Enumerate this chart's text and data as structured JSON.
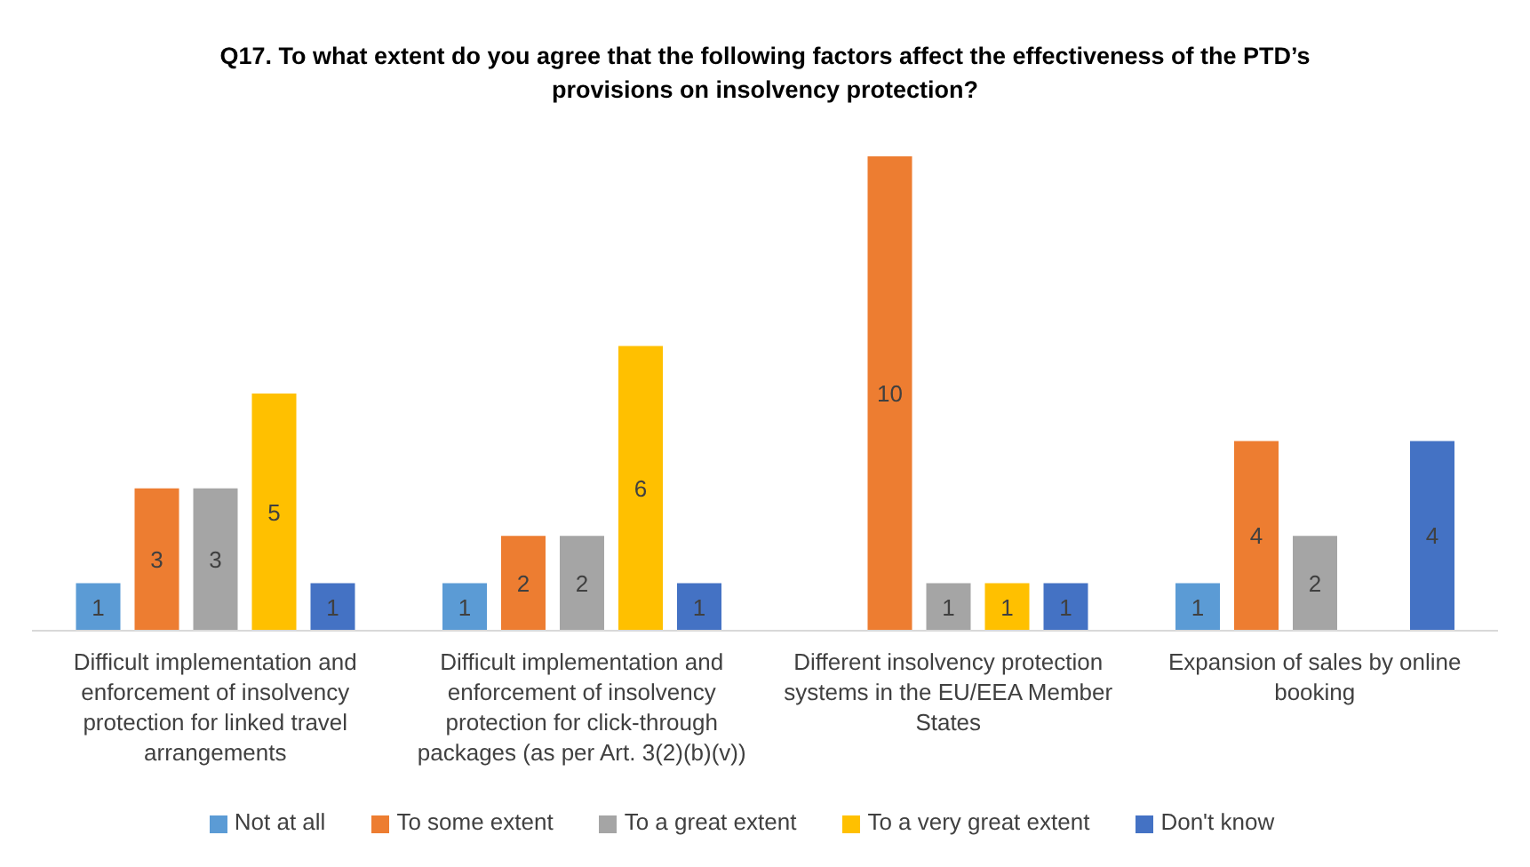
{
  "chart_data": {
    "type": "bar",
    "title": "Q17. To what extent do you agree that the following factors affect the effectiveness of the PTD’s provisions on insolvency protection?",
    "categories": [
      "Difficult implementation and enforcement of insolvency protection for linked travel arrangements",
      "Difficult implementation and enforcement of insolvency protection for click-through packages (as per Art. 3(2)(b)(v))",
      "Different insolvency protection systems in the EU/EEA Member States",
      "Expansion of sales by online booking"
    ],
    "series": [
      {
        "name": "Not at all",
        "color": "#5b9bd5",
        "values": [
          1,
          1,
          null,
          1
        ]
      },
      {
        "name": "To some extent",
        "color": "#ed7d31",
        "values": [
          3,
          2,
          10,
          4
        ]
      },
      {
        "name": "To a great extent",
        "color": "#a5a5a5",
        "values": [
          3,
          2,
          1,
          2
        ]
      },
      {
        "name": "To a very great extent",
        "color": "#ffc000",
        "values": [
          5,
          6,
          1,
          null
        ]
      },
      {
        "name": "Don't know",
        "color": "#4472c4",
        "values": [
          1,
          1,
          1,
          4
        ]
      }
    ],
    "data_labels": true,
    "legend": "bottom",
    "grid": false
  }
}
